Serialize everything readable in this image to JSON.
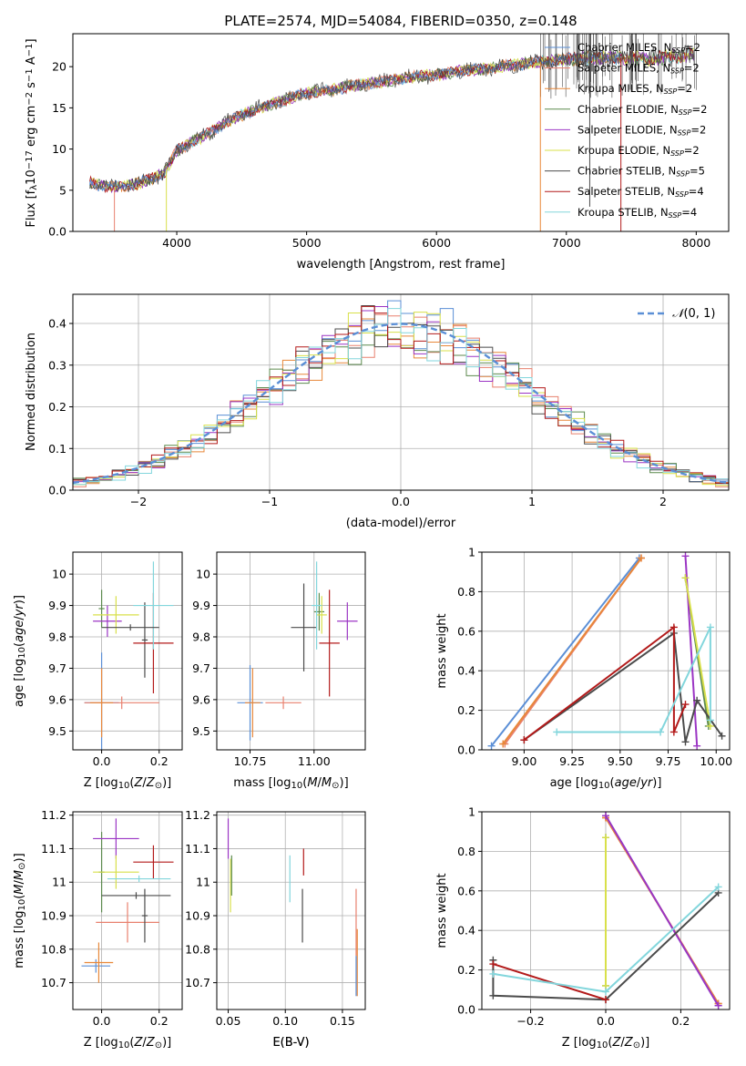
{
  "colors": {
    "Chabrier MILES": "#5b8fd6",
    "Salpeter MILES": "#e8806e",
    "Kroupa MILES": "#e8883a",
    "Chabrier ELODIE": "#5c8a4e",
    "Salpeter ELODIE": "#9b35c4",
    "Kroupa ELODIE": "#d8e04a",
    "Chabrier STELIB": "#4b4b4b",
    "Salpeter STELIB": "#b31a1a",
    "Kroupa STELIB": "#82d6dc"
  },
  "chart_data": [
    {
      "id": "spectrum",
      "type": "line",
      "title": "PLATE=2574, MJD=54084, FIBERID=0350, z=0.148",
      "xlabel": "wavelength [Angstrom, rest frame]",
      "ylabel": "Flux [f$_\\lambda$10$^{-17}$ erg cm$^{-2}$ s$^{-1}$ A$^{-1}$]",
      "xlim": [
        3200,
        8250
      ],
      "ylim": [
        0,
        24
      ],
      "xticks": [
        4000,
        5000,
        6000,
        7000,
        8000
      ],
      "yticks": [
        0,
        5,
        10,
        15,
        20
      ],
      "grid": false,
      "legend_position": "top-right",
      "legend": [
        {
          "name": "Chabrier MILES",
          "ssp": "N_SSP=2"
        },
        {
          "name": "Salpeter MILES",
          "ssp": "N_SSP=2"
        },
        {
          "name": "Kroupa MILES",
          "ssp": "N_SSP=2"
        },
        {
          "name": "Chabrier ELODIE",
          "ssp": "N_SSP=2"
        },
        {
          "name": "Salpeter ELODIE",
          "ssp": "N_SSP=2"
        },
        {
          "name": "Kroupa ELODIE",
          "ssp": "N_SSP=2"
        },
        {
          "name": "Chabrier STELIB",
          "ssp": "N_SSP=5"
        },
        {
          "name": "Salpeter STELIB",
          "ssp": "N_SSP=4"
        },
        {
          "name": "Kroupa STELIB",
          "ssp": "N_SSP=4"
        }
      ],
      "continuum": {
        "x": [
          3300,
          3500,
          3700,
          3900,
          4000,
          4200,
          4400,
          4600,
          4800,
          5000,
          5200,
          5400,
          5600,
          5800,
          6000,
          6200,
          6400,
          6600,
          6800,
          7000,
          7200,
          7400,
          7600,
          7800,
          8000
        ],
        "y": [
          6.0,
          5.4,
          5.8,
          7.0,
          9.8,
          11.5,
          13.4,
          14.8,
          15.8,
          16.8,
          17.2,
          17.8,
          18.2,
          18.7,
          19.0,
          19.5,
          19.8,
          20.2,
          20.6,
          20.9,
          21.1,
          21.1,
          20.9,
          21.2,
          21.5
        ]
      },
      "spikes": [
        {
          "x": 3520,
          "bottom": 0,
          "series": "Salpeter MILES"
        },
        {
          "x": 3920,
          "bottom": 0,
          "series": "Kroupa ELODIE"
        },
        {
          "x": 6800,
          "bottom": 0,
          "series": "Kroupa MILES"
        },
        {
          "x": 7420,
          "bottom": 0,
          "series": "Salpeter STELIB"
        },
        {
          "x": 7180,
          "bottom": 3,
          "series": "Chabrier STELIB"
        }
      ]
    },
    {
      "id": "residuals",
      "type": "line",
      "xlabel": "(data-model)/error",
      "ylabel": "Normed distribution",
      "xlim": [
        -2.5,
        2.5
      ],
      "ylim": [
        0,
        0.47
      ],
      "xticks": [
        -2,
        -1,
        0,
        1,
        2
      ],
      "yticks": [
        0.0,
        0.1,
        0.2,
        0.3,
        0.4
      ],
      "grid": true,
      "legend_position": "top-right",
      "reference_curve": {
        "name": "N(0,1)",
        "mean": 0,
        "sigma": 1
      },
      "histogram_bin_width": 0.1
    },
    {
      "id": "age_vs_Z",
      "type": "scatter",
      "xlabel": "Z [log10(Z/Z⊙)]",
      "ylabel": "age [log10(age/yr)]",
      "xlim": [
        -0.1,
        0.28
      ],
      "ylim": [
        9.44,
        10.07
      ],
      "xticks": [
        0.0,
        0.2
      ],
      "yticks": [
        9.5,
        9.6,
        9.7,
        9.8,
        9.9,
        10.0
      ],
      "grid": true,
      "points": [
        {
          "series": "Chabrier MILES",
          "x": 0.0,
          "y": 9.59,
          "xerr": 0.06,
          "yerr": 0.16
        },
        {
          "series": "Salpeter MILES",
          "x": 0.07,
          "y": 9.59,
          "xerr": 0.13,
          "yerr": 0.02
        },
        {
          "series": "Kroupa MILES",
          "x": 0.0,
          "y": 9.59,
          "xerr": 0.04,
          "yerr": 0.11
        },
        {
          "series": "Chabrier ELODIE",
          "x": 0.0,
          "y": 9.89,
          "xerr": 0.01,
          "yerr": 0.06
        },
        {
          "series": "Salpeter ELODIE",
          "x": 0.02,
          "y": 9.85,
          "xerr": 0.05,
          "yerr": 0.05
        },
        {
          "series": "Kroupa ELODIE",
          "x": 0.05,
          "y": 9.87,
          "xerr": 0.08,
          "yerr": 0.06
        },
        {
          "series": "Chabrier STELIB",
          "x": 0.15,
          "y": 9.79,
          "xerr": 0.01,
          "yerr": 0.12
        },
        {
          "series": "Salpeter STELIB",
          "x": 0.18,
          "y": 9.78,
          "xerr": 0.07,
          "yerr": 0.16
        },
        {
          "series": "Kroupa STELIB",
          "x": 0.18,
          "y": 9.9,
          "xerr": 0.07,
          "yerr": 0.14
        },
        {
          "series": "Chabrier STELIB",
          "x": 0.1,
          "y": 9.83,
          "xerr": 0.1,
          "yerr": 0.01
        }
      ]
    },
    {
      "id": "age_vs_mass",
      "type": "scatter",
      "xlabel": "mass [log10(M/M⊙)]",
      "ylabel": "",
      "xlim": [
        10.62,
        11.2
      ],
      "ylim": [
        9.44,
        10.07
      ],
      "xticks": [
        10.75,
        11.0
      ],
      "xtick_labels": [
        "10.75",
        "11.00"
      ],
      "yticks": [
        9.5,
        9.6,
        9.7,
        9.8,
        9.9,
        10.0
      ],
      "grid": true,
      "points": [
        {
          "series": "Chabrier MILES",
          "x": 10.75,
          "y": 9.59,
          "xerr": 0.05,
          "yerr": 0.12
        },
        {
          "series": "Salpeter MILES",
          "x": 10.88,
          "y": 9.59,
          "xerr": 0.07,
          "yerr": 0.02
        },
        {
          "series": "Kroupa MILES",
          "x": 10.76,
          "y": 9.59,
          "xerr": 0.03,
          "yerr": 0.11
        },
        {
          "series": "Chabrier ELODIE",
          "x": 11.02,
          "y": 9.88,
          "xerr": 0.02,
          "yerr": 0.06
        },
        {
          "series": "Salpeter ELODIE",
          "x": 11.13,
          "y": 9.85,
          "xerr": 0.04,
          "yerr": 0.06
        },
        {
          "series": "Kroupa ELODIE",
          "x": 11.03,
          "y": 9.87,
          "xerr": 0.02,
          "yerr": 0.06
        },
        {
          "series": "Chabrier STELIB",
          "x": 10.96,
          "y": 9.83,
          "xerr": 0.05,
          "yerr": 0.14
        },
        {
          "series": "Salpeter STELIB",
          "x": 11.06,
          "y": 9.78,
          "xerr": 0.04,
          "yerr": 0.17
        },
        {
          "series": "Kroupa STELIB",
          "x": 11.01,
          "y": 9.9,
          "xerr": 0.02,
          "yerr": 0.14
        }
      ]
    },
    {
      "id": "weight_vs_age",
      "type": "line",
      "xlabel": "age [log10(age/yr)]",
      "ylabel": "mass weight",
      "xlim": [
        8.78,
        10.07
      ],
      "ylim": [
        0,
        1
      ],
      "xticks": [
        9.0,
        9.25,
        9.5,
        9.75,
        10.0
      ],
      "xtick_labels": [
        "9.00",
        "9.25",
        "9.50",
        "9.75",
        "10.00"
      ],
      "yticks": [
        0.0,
        0.2,
        0.4,
        0.6,
        0.8,
        1.0
      ],
      "grid": true,
      "series": [
        {
          "name": "Chabrier MILES",
          "x": [
            8.83,
            9.6
          ],
          "y": [
            0.02,
            0.97
          ]
        },
        {
          "name": "Salpeter MILES",
          "x": [
            8.9,
            9.61
          ],
          "y": [
            0.03,
            0.97
          ]
        },
        {
          "name": "Kroupa MILES",
          "x": [
            8.89,
            9.61
          ],
          "y": [
            0.03,
            0.97
          ]
        },
        {
          "name": "Chabrier ELODIE",
          "x": [
            9.84,
            9.96
          ],
          "y": [
            0.87,
            0.12
          ]
        },
        {
          "name": "Salpeter ELODIE",
          "x": [
            9.84,
            9.9
          ],
          "y": [
            0.98,
            0.02
          ]
        },
        {
          "name": "Kroupa ELODIE",
          "x": [
            9.84,
            9.97
          ],
          "y": [
            0.87,
            0.12
          ]
        },
        {
          "name": "Chabrier STELIB",
          "x": [
            9.0,
            9.78,
            9.84,
            9.9,
            10.03
          ],
          "y": [
            0.05,
            0.59,
            0.04,
            0.25,
            0.07
          ]
        },
        {
          "name": "Salpeter STELIB",
          "x": [
            9.0,
            9.78,
            9.78,
            9.84
          ],
          "y": [
            0.05,
            0.62,
            0.09,
            0.23
          ]
        },
        {
          "name": "Kroupa STELIB",
          "x": [
            9.17,
            9.71,
            9.97,
            9.97
          ],
          "y": [
            0.09,
            0.09,
            0.62,
            0.15
          ]
        }
      ]
    },
    {
      "id": "mass_vs_Z",
      "type": "scatter",
      "xlabel": "Z [log10(Z/Z⊙)]",
      "ylabel": "mass [log10(M/M⊙)]",
      "xlim": [
        -0.1,
        0.28
      ],
      "ylim": [
        10.62,
        11.21
      ],
      "xticks": [
        0.0,
        0.2
      ],
      "yticks": [
        10.7,
        10.8,
        10.9,
        11.0,
        11.1,
        11.2
      ],
      "grid": true,
      "points": [
        {
          "series": "Chabrier MILES",
          "x": -0.02,
          "y": 10.75,
          "xerr": 0.05,
          "yerr": 0.02
        },
        {
          "series": "Salpeter MILES",
          "x": 0.09,
          "y": 10.88,
          "xerr": 0.11,
          "yerr": 0.06
        },
        {
          "series": "Kroupa MILES",
          "x": -0.01,
          "y": 10.76,
          "xerr": 0.05,
          "yerr": 0.06
        },
        {
          "series": "Chabrier ELODIE",
          "x": 0.0,
          "y": 11.03,
          "xerr": 0.01,
          "yerr": 0.12
        },
        {
          "series": "Salpeter ELODIE",
          "x": 0.05,
          "y": 11.13,
          "xerr": 0.08,
          "yerr": 0.06
        },
        {
          "series": "Kroupa ELODIE",
          "x": 0.05,
          "y": 11.03,
          "xerr": 0.08,
          "yerr": 0.05
        },
        {
          "series": "Chabrier STELIB",
          "x": 0.12,
          "y": 10.96,
          "xerr": 0.12,
          "yerr": 0.01
        },
        {
          "series": "Chabrier STELIB",
          "x": 0.15,
          "y": 10.9,
          "xerr": 0.01,
          "yerr": 0.08
        },
        {
          "series": "Salpeter STELIB",
          "x": 0.18,
          "y": 11.06,
          "xerr": 0.07,
          "yerr": 0.05
        },
        {
          "series": "Kroupa STELIB",
          "x": 0.13,
          "y": 11.01,
          "xerr": 0.11,
          "yerr": 0.01
        }
      ]
    },
    {
      "id": "mass_vs_EBV",
      "type": "scatter",
      "xlabel": "E(B-V)",
      "ylabel": "",
      "xlim": [
        0.04,
        0.17
      ],
      "ylim": [
        10.62,
        11.21
      ],
      "xticks": [
        0.05,
        0.1,
        0.15
      ],
      "xtick_labels": [
        "0.05",
        "0.10",
        "0.15"
      ],
      "yticks": [
        10.7,
        10.8,
        10.9,
        11.0,
        11.1,
        11.2
      ],
      "grid": true,
      "points": [
        {
          "series": "Salpeter ELODIE",
          "x": 0.05,
          "y": 11.13,
          "yerr": 0.06
        },
        {
          "series": "Kroupa ELODIE",
          "x": 0.052,
          "y": 10.99,
          "yerr": 0.08
        },
        {
          "series": "Chabrier ELODIE",
          "x": 0.053,
          "y": 11.02,
          "yerr": 0.06
        },
        {
          "series": "Kroupa STELIB",
          "x": 0.104,
          "y": 11.01,
          "yerr": 0.07
        },
        {
          "series": "Chabrier STELIB",
          "x": 0.115,
          "y": 10.9,
          "yerr": 0.08
        },
        {
          "series": "Salpeter STELIB",
          "x": 0.116,
          "y": 11.06,
          "yerr": 0.04
        },
        {
          "series": "Salpeter MILES",
          "x": 0.162,
          "y": 10.88,
          "yerr": 0.1
        },
        {
          "series": "Kroupa MILES",
          "x": 0.163,
          "y": 10.76,
          "yerr": 0.1
        },
        {
          "series": "Chabrier MILES",
          "x": 0.162,
          "y": 10.72,
          "yerr": 0.06
        }
      ]
    },
    {
      "id": "weight_vs_Z",
      "type": "line",
      "xlabel": "Z [log10(Z/Z⊙)]",
      "ylabel": "mass weight",
      "xlim": [
        -0.33,
        0.33
      ],
      "ylim": [
        0,
        1
      ],
      "xticks": [
        -0.2,
        0.0,
        0.2
      ],
      "xtick_labels": [
        "−0.2",
        "0.0",
        "0.2"
      ],
      "yticks": [
        0.0,
        0.2,
        0.4,
        0.6,
        0.8,
        1.0
      ],
      "grid": true,
      "series": [
        {
          "name": "Chabrier MILES",
          "x": [
            0.0,
            0.3
          ],
          "y": [
            0.98,
            0.02
          ]
        },
        {
          "name": "Salpeter MILES",
          "x": [
            0.0,
            0.3
          ],
          "y": [
            0.97,
            0.03
          ]
        },
        {
          "name": "Kroupa MILES",
          "x": [
            0.0,
            0.3
          ],
          "y": [
            0.97,
            0.03
          ]
        },
        {
          "name": "Salpeter ELODIE",
          "x": [
            0.0,
            0.3
          ],
          "y": [
            0.98,
            0.02
          ]
        },
        {
          "name": "Chabrier ELODIE",
          "x": [
            0.0,
            0.0
          ],
          "y": [
            0.87,
            0.12
          ]
        },
        {
          "name": "Kroupa ELODIE",
          "x": [
            0.0,
            0.0
          ],
          "y": [
            0.87,
            0.12
          ]
        },
        {
          "name": "Chabrier STELIB",
          "x": [
            -0.3,
            -0.3,
            0.0,
            0.3
          ],
          "y": [
            0.25,
            0.07,
            0.05,
            0.59
          ]
        },
        {
          "name": "Salpeter STELIB",
          "x": [
            -0.3,
            0.0
          ],
          "y": [
            0.23,
            0.05
          ]
        },
        {
          "name": "Kroupa STELIB",
          "x": [
            -0.3,
            0.0,
            0.3
          ],
          "y": [
            0.18,
            0.09,
            0.62
          ]
        }
      ]
    }
  ]
}
